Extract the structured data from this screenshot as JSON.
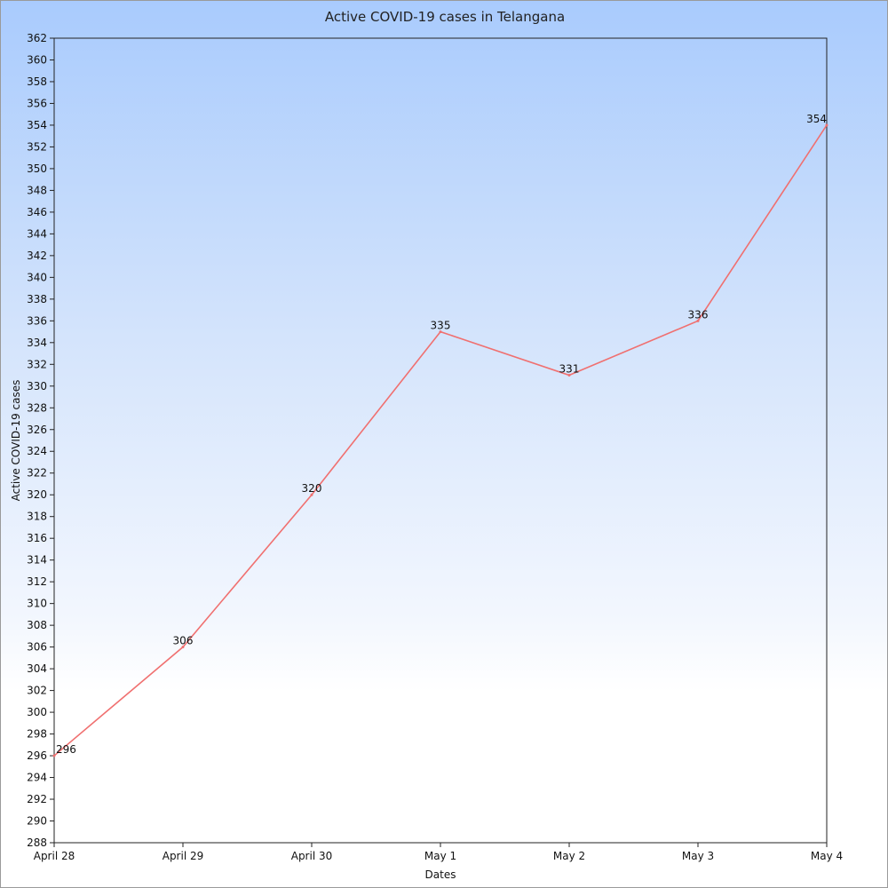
{
  "chart_data": {
    "type": "line",
    "title": "Active COVID-19 cases in Telangana",
    "xlabel": "Dates",
    "ylabel": "Active COVID-19 cases",
    "categories": [
      "April 28",
      "April 29",
      "April 30",
      "May 1",
      "May 2",
      "May 3",
      "May 4"
    ],
    "series": [
      {
        "values": [
          296,
          306,
          320,
          335,
          331,
          336,
          354
        ]
      }
    ],
    "ylim": [
      288,
      362
    ],
    "ytick_step": 2,
    "grid": false,
    "line_color": "#f07070",
    "data_labels": true
  }
}
